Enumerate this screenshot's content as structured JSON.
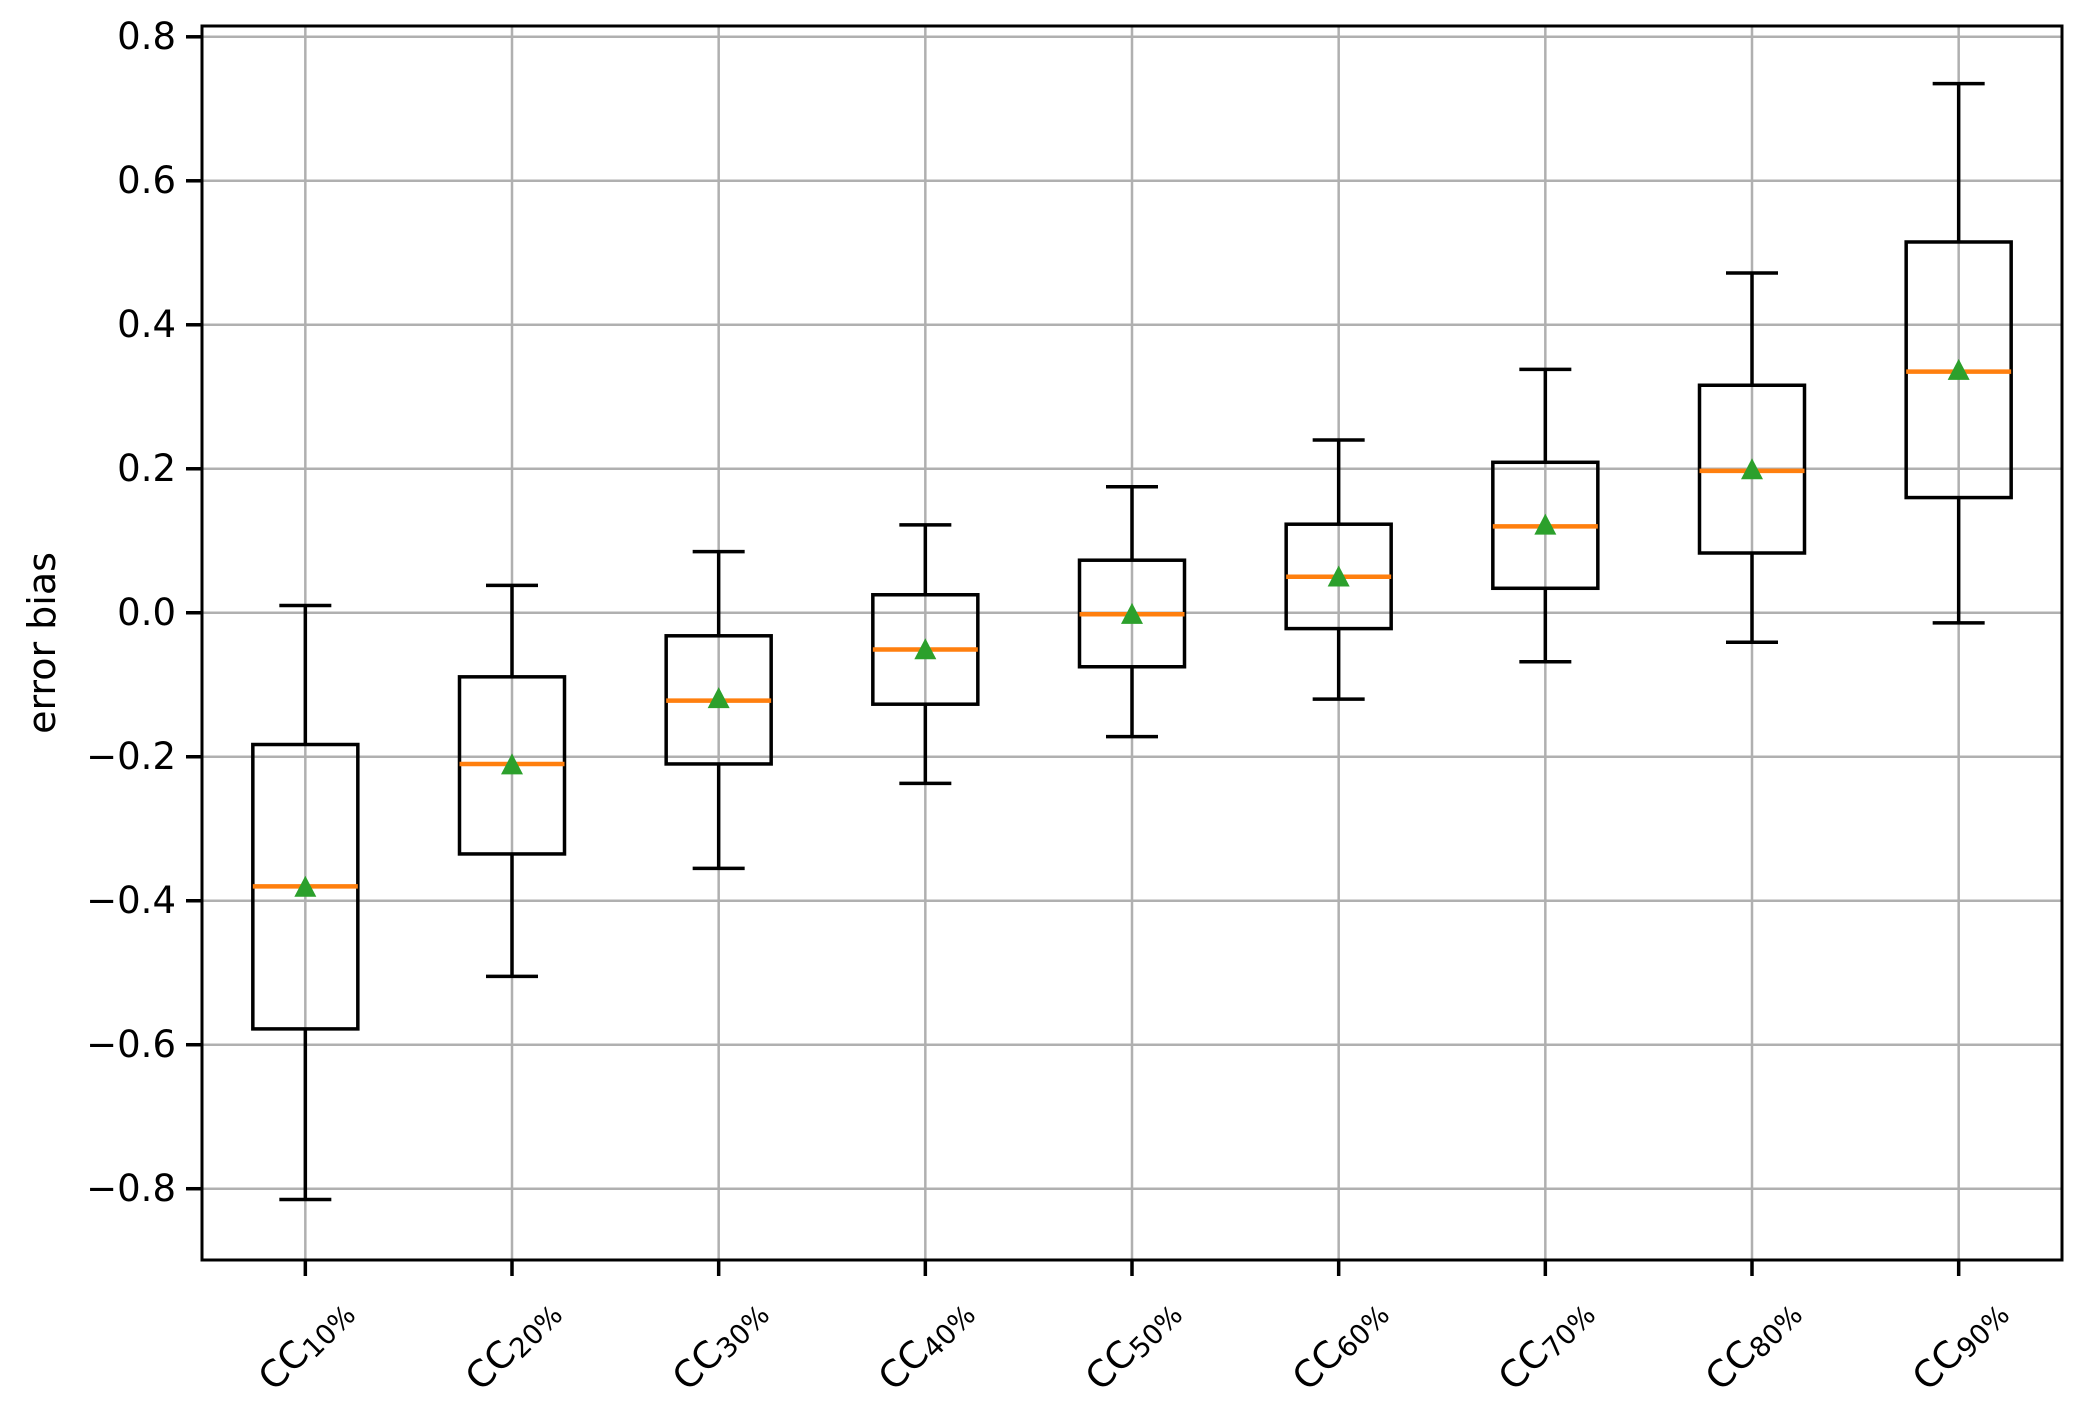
{
  "chart_data": {
    "type": "boxplot",
    "title": "",
    "xlabel": "",
    "ylabel": "error bias",
    "grid": "on",
    "legend": "none",
    "ylim": [
      -0.899,
      0.815
    ],
    "yticks": [
      0.8,
      0.6,
      0.4,
      0.2,
      0.0,
      -0.2,
      -0.4,
      -0.6,
      -0.8
    ],
    "categories": [
      {
        "label": "CC10%",
        "base": "CC",
        "sub": "10%"
      },
      {
        "label": "CC20%",
        "base": "CC",
        "sub": "20%"
      },
      {
        "label": "CC30%",
        "base": "CC",
        "sub": "30%"
      },
      {
        "label": "CC40%",
        "base": "CC",
        "sub": "40%"
      },
      {
        "label": "CC50%",
        "base": "CC",
        "sub": "50%"
      },
      {
        "label": "CC60%",
        "base": "CC",
        "sub": "60%"
      },
      {
        "label": "CC70%",
        "base": "CC",
        "sub": "70%"
      },
      {
        "label": "CC80%",
        "base": "CC",
        "sub": "80%"
      },
      {
        "label": "CC90%",
        "base": "CC",
        "sub": "90%"
      }
    ],
    "boxes": [
      {
        "category": "CC10%",
        "whisker_low": -0.815,
        "q1": -0.578,
        "median": -0.38,
        "mean": -0.382,
        "q3": -0.183,
        "whisker_high": 0.01
      },
      {
        "category": "CC20%",
        "whisker_low": -0.505,
        "q1": -0.335,
        "median": -0.21,
        "mean": -0.212,
        "q3": -0.089,
        "whisker_high": 0.038
      },
      {
        "category": "CC30%",
        "whisker_low": -0.355,
        "q1": -0.21,
        "median": -0.122,
        "mean": -0.12,
        "q3": -0.032,
        "whisker_high": 0.085
      },
      {
        "category": "CC40%",
        "whisker_low": -0.237,
        "q1": -0.127,
        "median": -0.051,
        "mean": -0.052,
        "q3": 0.025,
        "whisker_high": 0.122
      },
      {
        "category": "CC50%",
        "whisker_low": -0.172,
        "q1": -0.075,
        "median": -0.002,
        "mean": -0.003,
        "q3": 0.073,
        "whisker_high": 0.175
      },
      {
        "category": "CC60%",
        "whisker_low": -0.12,
        "q1": -0.022,
        "median": 0.05,
        "mean": 0.049,
        "q3": 0.123,
        "whisker_high": 0.24
      },
      {
        "category": "CC70%",
        "whisker_low": -0.068,
        "q1": 0.034,
        "median": 0.12,
        "mean": 0.121,
        "q3": 0.209,
        "whisker_high": 0.338
      },
      {
        "category": "CC80%",
        "whisker_low": -0.041,
        "q1": 0.083,
        "median": 0.197,
        "mean": 0.198,
        "q3": 0.316,
        "whisker_high": 0.472
      },
      {
        "category": "CC90%",
        "whisker_low": -0.014,
        "q1": 0.16,
        "median": 0.335,
        "mean": 0.336,
        "q3": 0.515,
        "whisker_high": 0.735
      }
    ],
    "colors": {
      "median": "#ff7f0e",
      "mean_marker": "#2ca02c",
      "box_line": "#000000",
      "grid": "#b0b0b0",
      "spine": "#000000",
      "background": "#ffffff"
    },
    "marker_styles": {
      "mean": "triangle-up"
    }
  }
}
